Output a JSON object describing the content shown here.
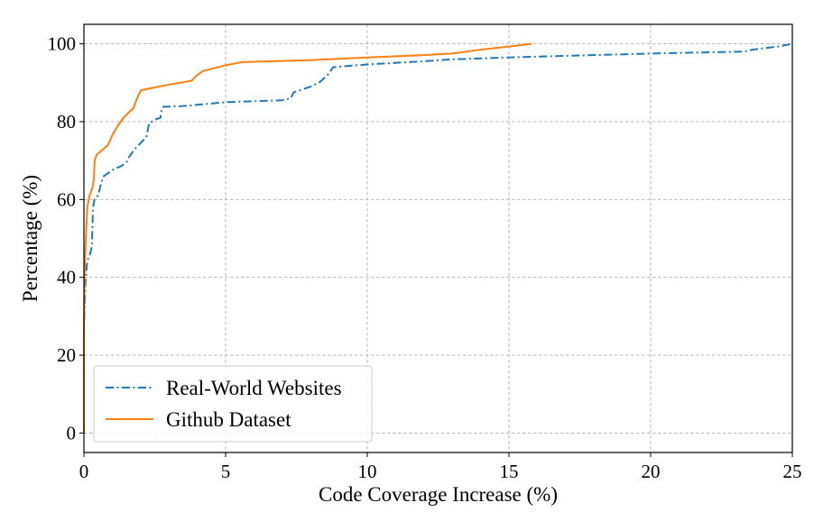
{
  "chart_data": {
    "type": "line",
    "title": "",
    "xlabel": "Code Coverage Increase (%)",
    "ylabel": "Percentage (%)",
    "xlim": [
      0,
      25
    ],
    "ylim": [
      -5,
      105
    ],
    "xticks": [
      0,
      5,
      10,
      15,
      20,
      25
    ],
    "yticks": [
      0,
      20,
      40,
      60,
      80,
      100
    ],
    "grid": true,
    "legend_position": "lower-left",
    "series": [
      {
        "name": "Real-World Websites",
        "color": "#1f77b4",
        "line_style": "dashdot",
        "x": [
          0.0,
          0.0,
          0.03,
          0.05,
          0.1,
          0.15,
          0.22,
          0.28,
          0.32,
          0.35,
          0.37,
          0.4,
          0.5,
          0.6,
          0.7,
          0.9,
          1.1,
          1.3,
          1.5,
          1.6,
          1.8,
          2.0,
          2.2,
          2.3,
          2.5,
          2.7,
          2.75,
          2.8,
          3.5,
          5.0,
          7.0,
          7.3,
          7.4,
          7.6,
          8.0,
          8.3,
          8.6,
          8.8,
          10.0,
          12.0,
          13.0,
          15.0,
          20.0,
          23.3,
          23.6,
          24.5,
          25.0
        ],
        "y": [
          0,
          27,
          34,
          38,
          43,
          45,
          46,
          48,
          58,
          59,
          60,
          60.5,
          61,
          64,
          66,
          67,
          68,
          68.5,
          69.5,
          71,
          73,
          74.5,
          76,
          79.5,
          80.5,
          81,
          83.5,
          83.8,
          84,
          85,
          85.5,
          86,
          87.5,
          88,
          89,
          90,
          92,
          94,
          94.7,
          95.5,
          96,
          96.5,
          97.5,
          98,
          98.5,
          99.3,
          100
        ]
      },
      {
        "name": "Github Dataset",
        "color": "#ff7f0e",
        "line_style": "solid",
        "x": [
          0.0,
          0.0,
          0.02,
          0.04,
          0.08,
          0.12,
          0.2,
          0.3,
          0.35,
          0.38,
          0.45,
          0.7,
          0.85,
          1.0,
          1.2,
          1.4,
          1.6,
          1.75,
          1.85,
          2.0,
          2.3,
          3.0,
          3.8,
          4.0,
          4.2,
          5.0,
          5.6,
          8.0,
          10.0,
          12.0,
          13.0,
          14.0,
          15.0,
          15.8
        ],
        "y": [
          0,
          27,
          38,
          45,
          52,
          58,
          61,
          63,
          65,
          70,
          71.5,
          73,
          74,
          76.5,
          79,
          81,
          82.5,
          83.5,
          85.5,
          88,
          88.5,
          89.5,
          90.5,
          92,
          93,
          94.5,
          95.3,
          95.8,
          96.5,
          97.1,
          97.5,
          98.5,
          99.3,
          100
        ]
      }
    ]
  }
}
